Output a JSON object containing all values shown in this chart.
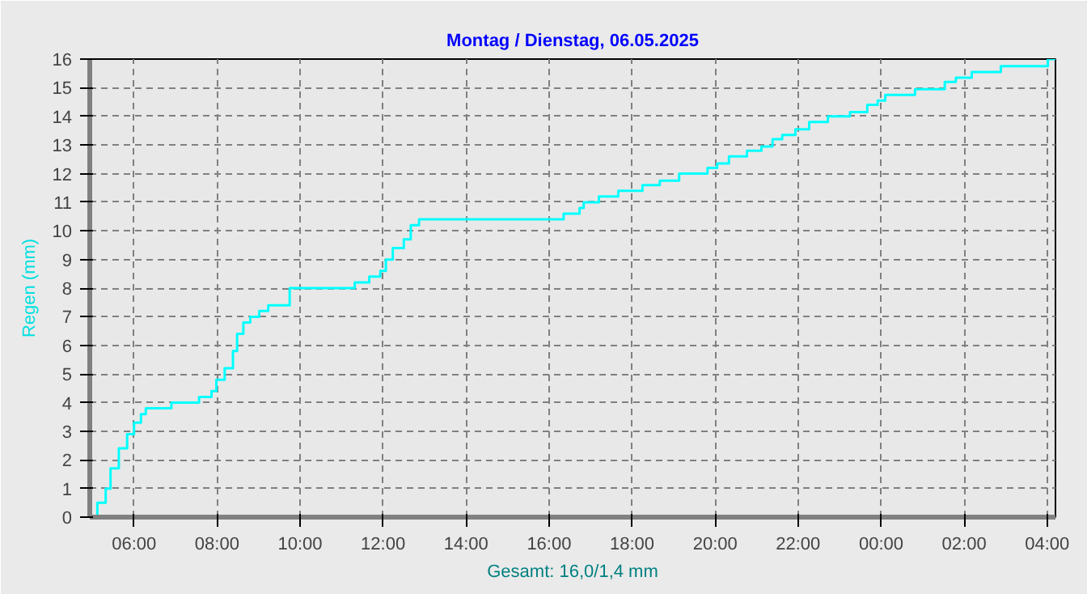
{
  "chart_data": {
    "type": "step",
    "title": "Montag / Dienstag, 06.05.2025",
    "ylabel": "Regen (mm)",
    "xlabel": "Gesamt: 16,0/1,4 mm",
    "x": [
      "2025-05-05T04:56",
      "2025-05-05T05:07",
      "2025-05-05T05:19",
      "2025-05-05T05:26",
      "2025-05-05T05:38",
      "2025-05-05T05:50",
      "2025-05-05T06:00",
      "2025-05-05T06:10",
      "2025-05-05T06:17",
      "2025-05-05T06:54",
      "2025-05-05T07:34",
      "2025-05-05T07:52",
      "2025-05-05T07:59",
      "2025-05-05T08:11",
      "2025-05-05T08:23",
      "2025-05-05T08:29",
      "2025-05-05T08:38",
      "2025-05-05T08:48",
      "2025-05-05T09:01",
      "2025-05-05T09:14",
      "2025-05-05T09:45",
      "2025-05-05T11:19",
      "2025-05-05T11:40",
      "2025-05-05T11:56",
      "2025-05-05T12:04",
      "2025-05-05T12:14",
      "2025-05-05T12:30",
      "2025-05-05T12:40",
      "2025-05-05T12:52",
      "2025-05-05T16:21",
      "2025-05-05T16:44",
      "2025-05-05T16:50",
      "2025-05-05T17:12",
      "2025-05-05T17:40",
      "2025-05-05T18:15",
      "2025-05-05T18:40",
      "2025-05-05T19:08",
      "2025-05-05T19:49",
      "2025-05-05T20:03",
      "2025-05-05T20:20",
      "2025-05-05T20:46",
      "2025-05-05T21:07",
      "2025-05-05T21:23",
      "2025-05-05T21:37",
      "2025-05-05T21:56",
      "2025-05-05T22:16",
      "2025-05-05T22:43",
      "2025-05-05T23:15",
      "2025-05-05T23:40",
      "2025-05-05T23:55",
      "2025-05-06T00:06",
      "2025-05-06T00:49",
      "2025-05-06T01:32",
      "2025-05-06T01:48",
      "2025-05-06T02:11",
      "2025-05-06T02:53",
      "2025-05-06T04:01",
      "2025-05-06T04:12"
    ],
    "series": [
      {
        "color": "#00ffff",
        "values": [
          0,
          0.5,
          1.0,
          1.7,
          2.4,
          2.9,
          3.3,
          3.6,
          3.8,
          4.0,
          4.2,
          4.4,
          4.8,
          5.2,
          5.8,
          6.4,
          6.8,
          7.0,
          7.2,
          7.4,
          8.0,
          8.2,
          8.4,
          8.6,
          9.0,
          9.4,
          9.7,
          10.2,
          10.4,
          10.6,
          10.8,
          11.0,
          11.2,
          11.4,
          11.6,
          11.75,
          12.0,
          12.2,
          12.35,
          12.6,
          12.8,
          12.95,
          13.2,
          13.35,
          13.55,
          13.8,
          14.0,
          14.15,
          14.4,
          14.55,
          14.75,
          14.95,
          15.2,
          15.35,
          15.55,
          15.75,
          16.0,
          16.0
        ]
      }
    ],
    "xlim": [
      "2025-05-05T04:56",
      "2025-05-06T04:12"
    ],
    "ylim": [
      0,
      16
    ],
    "xticks": [
      {
        "value": "2025-05-05T06:00",
        "label": "06:00"
      },
      {
        "value": "2025-05-05T08:00",
        "label": "08:00"
      },
      {
        "value": "2025-05-05T10:00",
        "label": "10:00"
      },
      {
        "value": "2025-05-05T12:00",
        "label": "12:00"
      },
      {
        "value": "2025-05-05T14:00",
        "label": "14:00"
      },
      {
        "value": "2025-05-05T16:00",
        "label": "16:00"
      },
      {
        "value": "2025-05-05T18:00",
        "label": "18:00"
      },
      {
        "value": "2025-05-05T20:00",
        "label": "20:00"
      },
      {
        "value": "2025-05-05T22:00",
        "label": "22:00"
      },
      {
        "value": "2025-05-06T00:00",
        "label": "00:00"
      },
      {
        "value": "2025-05-06T02:00",
        "label": "02:00"
      },
      {
        "value": "2025-05-06T04:00",
        "label": "04:00"
      }
    ],
    "yticks": [
      0,
      1,
      2,
      3,
      4,
      5,
      6,
      7,
      8,
      9,
      10,
      11,
      12,
      13,
      14,
      15,
      16
    ],
    "grid": true,
    "line_style": "solid"
  }
}
